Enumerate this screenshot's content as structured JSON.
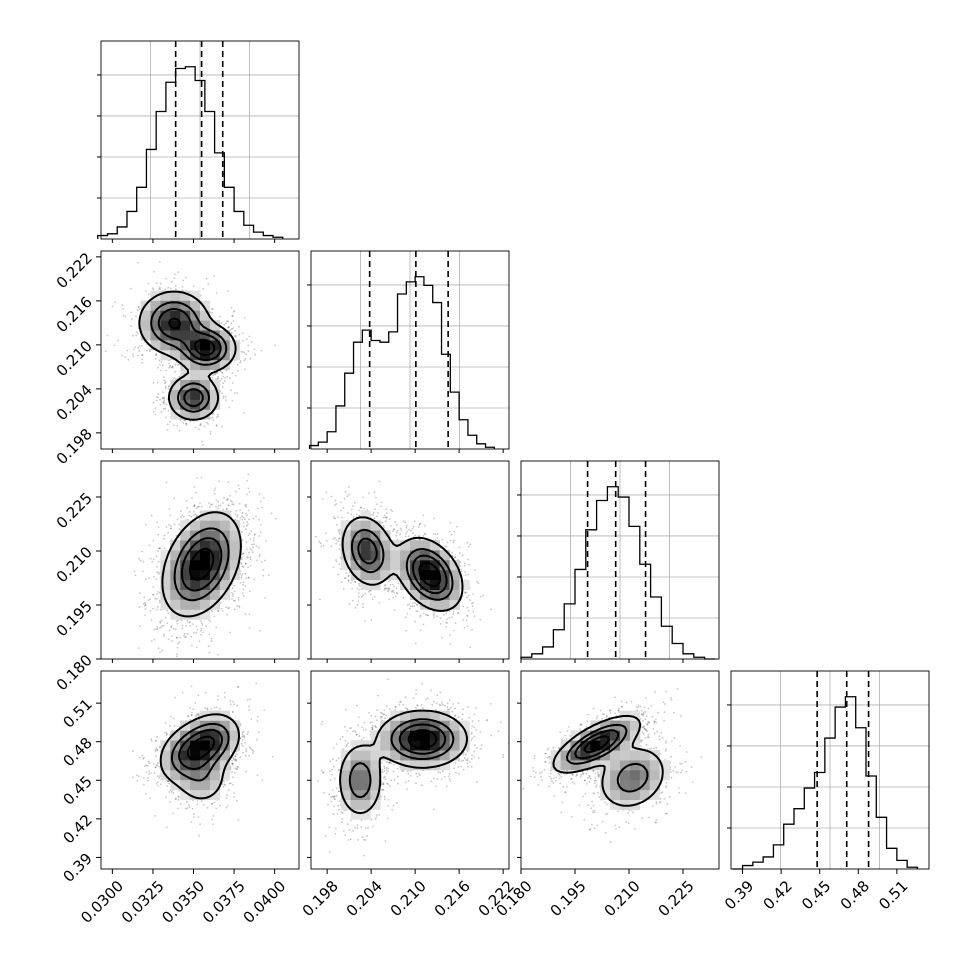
{
  "chart_data": {
    "type": "corner",
    "grid": true,
    "parameters": [
      {
        "range": [
          0.0293,
          0.0415
        ],
        "ticks": [
          "0.0300",
          "0.0325",
          "0.0350",
          "0.0375",
          "0.0400"
        ],
        "quantiles": [
          0.0339,
          0.0355,
          0.0368
        ],
        "histogram": {
          "x": [
            0.0294,
            0.03,
            0.0306,
            0.0312,
            0.0318,
            0.0324,
            0.033,
            0.0336,
            0.0342,
            0.0348,
            0.0354,
            0.036,
            0.0366,
            0.0372,
            0.0378,
            0.0384,
            0.039,
            0.0396,
            0.0402
          ],
          "heights": [
            0.02,
            0.03,
            0.07,
            0.16,
            0.3,
            0.52,
            0.74,
            0.91,
            0.99,
            1.0,
            0.92,
            0.74,
            0.5,
            0.3,
            0.16,
            0.08,
            0.04,
            0.02,
            0.01
          ]
        }
      },
      {
        "range": [
          0.1958,
          0.2228
        ],
        "ticks": [
          "0.198",
          "0.204",
          "0.210",
          "0.216",
          "0.222"
        ],
        "quantiles": [
          0.2038,
          0.2101,
          0.2145
        ],
        "histogram": {
          "x": [
            0.1962,
            0.1974,
            0.1986,
            0.1998,
            0.201,
            0.2022,
            0.2034,
            0.2046,
            0.2058,
            0.207,
            0.2082,
            0.2094,
            0.2106,
            0.2118,
            0.213,
            0.2142,
            0.2154,
            0.2166,
            0.2178,
            0.219,
            0.2202
          ],
          "heights": [
            0.02,
            0.04,
            0.1,
            0.25,
            0.44,
            0.62,
            0.69,
            0.63,
            0.62,
            0.68,
            0.9,
            0.97,
            1.0,
            0.95,
            0.85,
            0.55,
            0.33,
            0.17,
            0.08,
            0.03,
            0.01
          ]
        }
      },
      {
        "range": [
          0.18,
          0.235
        ],
        "ticks": [
          "0.180",
          "0.195",
          "0.210",
          "0.225"
        ],
        "quantiles": [
          0.1985,
          0.2063,
          0.2146
        ],
        "histogram": {
          "x": [
            0.1815,
            0.1845,
            0.1875,
            0.1905,
            0.1935,
            0.1965,
            0.1995,
            0.2025,
            0.2055,
            0.2085,
            0.2115,
            0.2145,
            0.2175,
            0.2205,
            0.2235,
            0.2265,
            0.2295,
            0.2325
          ],
          "heights": [
            0.01,
            0.03,
            0.07,
            0.17,
            0.32,
            0.52,
            0.75,
            0.92,
            1.0,
            0.94,
            0.77,
            0.55,
            0.36,
            0.19,
            0.09,
            0.03,
            0.01,
            0.0
          ]
        }
      },
      {
        "range": [
          0.381,
          0.535
        ],
        "ticks": [
          "0.39",
          "0.42",
          "0.45",
          "0.48",
          "0.51"
        ],
        "quantiles": [
          0.448,
          0.471,
          0.488
        ],
        "histogram": {
          "x": [
            0.386,
            0.394,
            0.402,
            0.41,
            0.418,
            0.426,
            0.434,
            0.442,
            0.45,
            0.458,
            0.466,
            0.474,
            0.482,
            0.49,
            0.498,
            0.506,
            0.514,
            0.522
          ],
          "heights": [
            0.0,
            0.02,
            0.04,
            0.07,
            0.14,
            0.26,
            0.35,
            0.47,
            0.56,
            0.76,
            0.94,
            1.0,
            0.82,
            0.54,
            0.3,
            0.12,
            0.05,
            0.01
          ]
        }
      }
    ],
    "density_modes": [
      {
        "x": 0,
        "y": 1,
        "modes": [
          {
            "center": [
              0.0338,
              0.213
            ],
            "sd": [
              0.0011,
              0.0022
            ],
            "rho": 0.0,
            "weight": 1.0
          },
          {
            "center": [
              0.0358,
              0.2095
            ],
            "sd": [
              0.0009,
              0.0016
            ],
            "rho": 0.0,
            "weight": 1.1
          },
          {
            "center": [
              0.035,
              0.2028
            ],
            "sd": [
              0.0008,
              0.0016
            ],
            "rho": 0.0,
            "weight": 0.9
          }
        ]
      },
      {
        "x": 0,
        "y": 2,
        "modes": [
          {
            "center": [
              0.0355,
              0.2063
            ],
            "sd": [
              0.0012,
              0.0072
            ],
            "rho": 0.35,
            "weight": 1.0
          }
        ]
      },
      {
        "x": 1,
        "y": 2,
        "modes": [
          {
            "center": [
              0.2035,
              0.21
            ],
            "sd": [
              0.0018,
              0.005
            ],
            "rho": -0.2,
            "weight": 0.85
          },
          {
            "center": [
              0.212,
              0.2035
            ],
            "sd": [
              0.0022,
              0.005
            ],
            "rho": -0.35,
            "weight": 1.15
          }
        ]
      },
      {
        "x": 0,
        "y": 3,
        "modes": [
          {
            "center": [
              0.0348,
              0.472
            ],
            "sd": [
              0.001,
              0.012
            ],
            "rho": 0.3,
            "weight": 0.95
          },
          {
            "center": [
              0.0362,
              0.481
            ],
            "sd": [
              0.0009,
              0.011
            ],
            "rho": 0.2,
            "weight": 0.85
          },
          {
            "center": [
              0.0355,
              0.452
            ],
            "sd": [
              0.0009,
              0.012
            ],
            "rho": 0.0,
            "weight": 0.45
          }
        ]
      },
      {
        "x": 1,
        "y": 3,
        "modes": [
          {
            "center": [
              0.211,
              0.482
            ],
            "sd": [
              0.003,
              0.011
            ],
            "rho": 0.0,
            "weight": 1.0
          },
          {
            "center": [
              0.2025,
              0.45
            ],
            "sd": [
              0.0016,
              0.015
            ],
            "rho": 0.0,
            "weight": 0.55
          }
        ]
      },
      {
        "x": 2,
        "y": 3,
        "modes": [
          {
            "center": [
              0.201,
              0.478
            ],
            "sd": [
              0.006,
              0.011
            ],
            "rho": 0.7,
            "weight": 1.0
          },
          {
            "center": [
              0.211,
              0.452
            ],
            "sd": [
              0.005,
              0.013
            ],
            "rho": 0.2,
            "weight": 0.55
          }
        ]
      }
    ]
  }
}
